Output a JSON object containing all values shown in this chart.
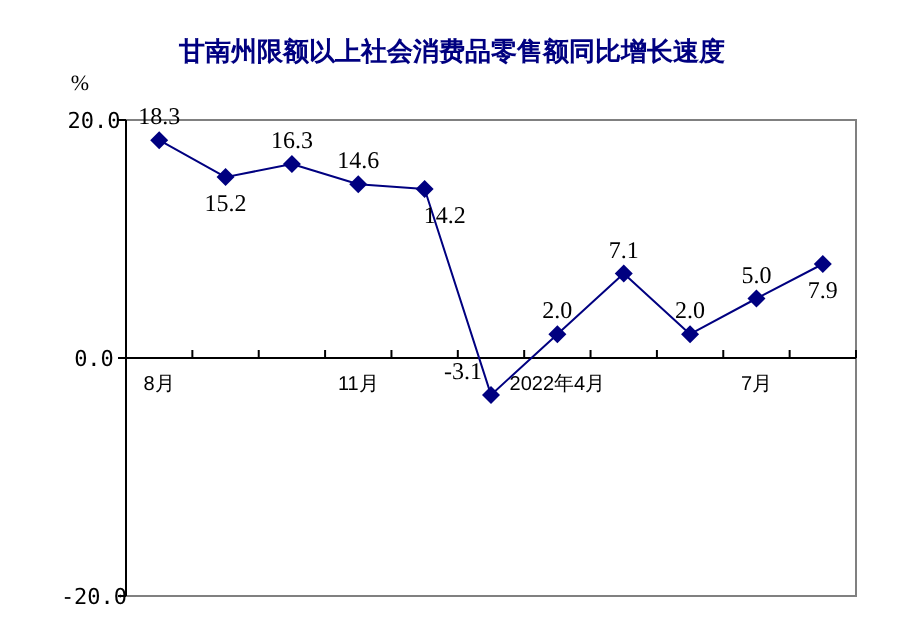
{
  "chart_data": {
    "type": "line",
    "title": "甘南州限额以上社会消费品零售额同比增长速度",
    "ylabel": "%",
    "categories": [
      "8月",
      null,
      null,
      "11月",
      null,
      null,
      "2022年4月",
      null,
      null,
      "7月",
      null
    ],
    "series": [
      {
        "color": "#000080",
        "values": [
          18.3,
          15.2,
          16.3,
          14.6,
          14.2,
          -3.1,
          2.0,
          7.1,
          2.0,
          5.0,
          7.9
        ],
        "value_labels": [
          "18.3",
          "15.2",
          "16.3",
          "14.6",
          "14.2",
          "-3.1",
          "2.0",
          "7.1",
          "2.0",
          "5.0",
          "7.9"
        ]
      }
    ],
    "ylim": [
      -20,
      20
    ],
    "yticks": [
      {
        "value": -20,
        "label": "-20.0"
      },
      {
        "value": 0,
        "label": "0.0"
      },
      {
        "value": 20,
        "label": "20.0"
      }
    ],
    "marker": "diamond",
    "grid": false
  }
}
